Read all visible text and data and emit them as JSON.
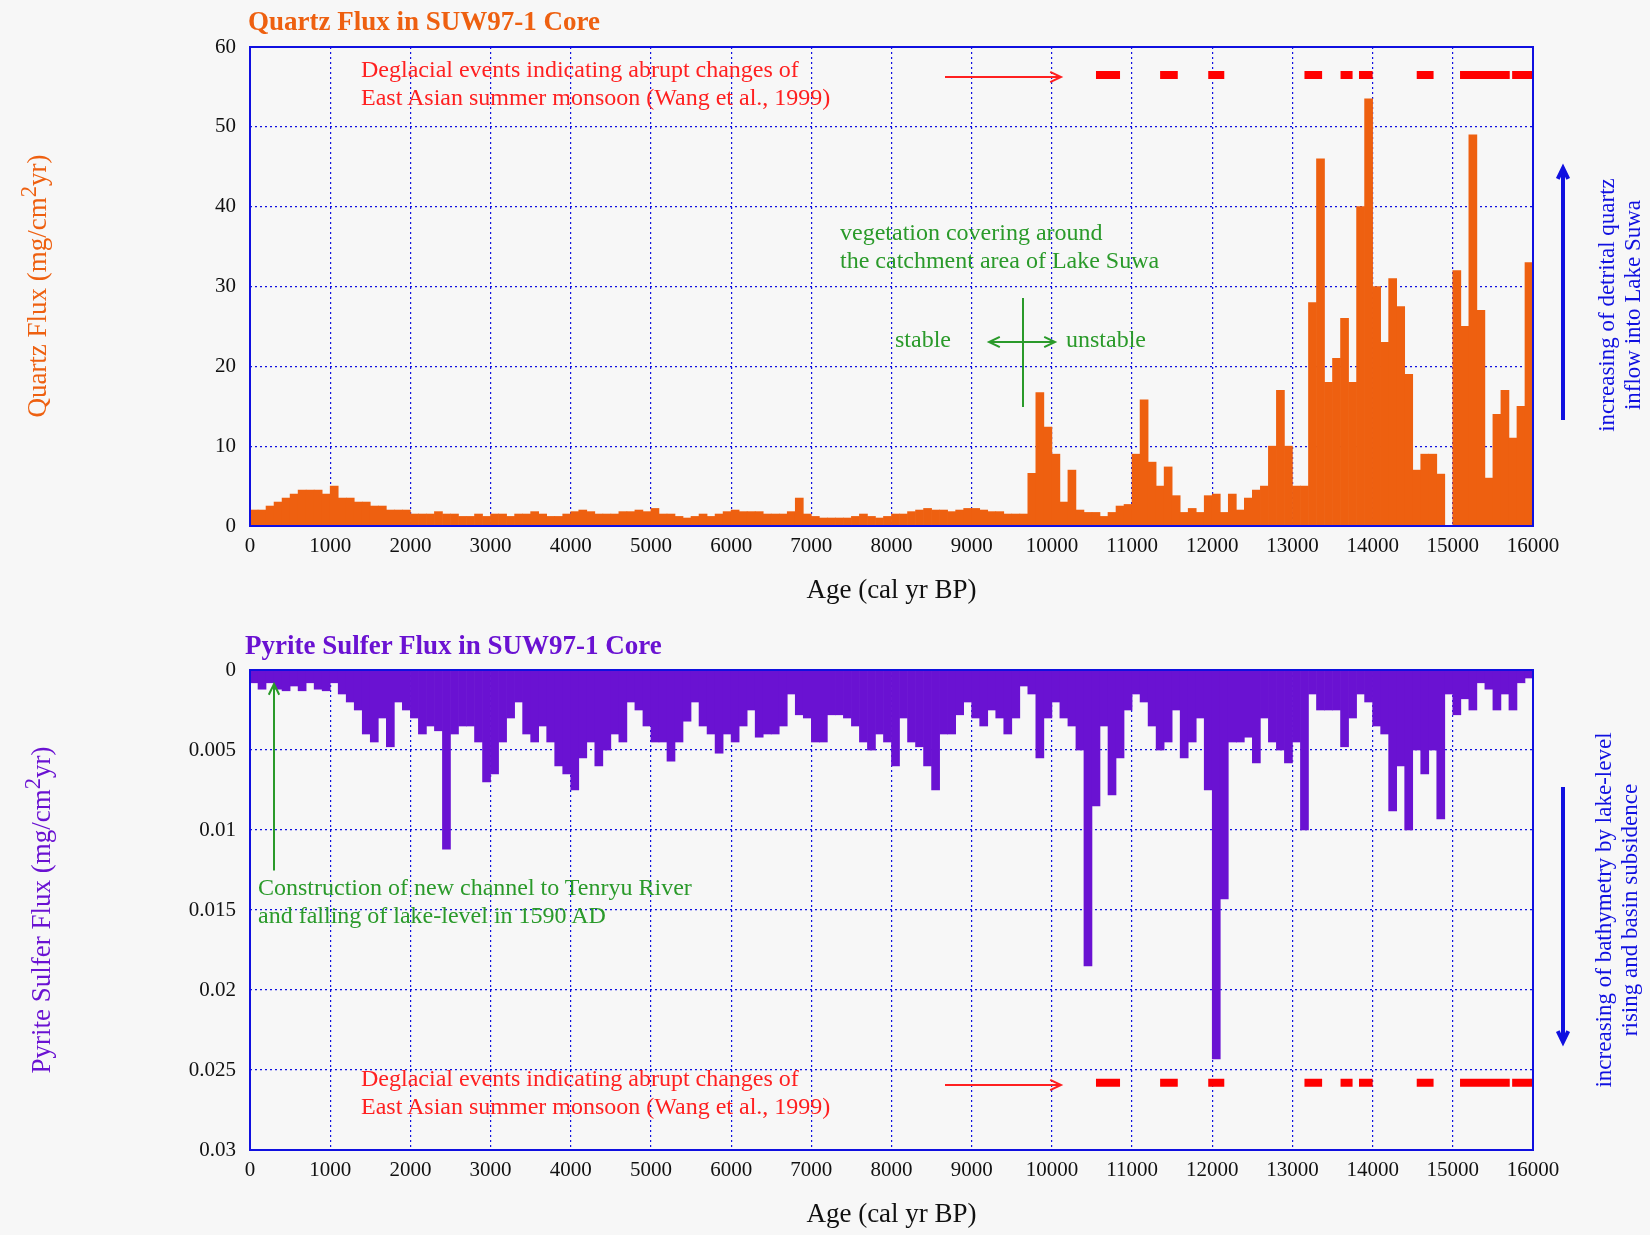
{
  "chart_data": [
    {
      "type": "histogram",
      "title": "Quartz Flux in SUW97-1 Core",
      "xlabel": "Age (cal yr BP)",
      "ylabel": "Quartz Flux (mg/cm$^{2}$yr)",
      "bins": [
        0,
        100,
        200,
        300,
        400,
        500,
        600,
        700,
        800,
        900,
        1000,
        1100,
        1200,
        1300,
        1400,
        1500,
        1600,
        1700,
        1800,
        1900,
        2000,
        2100,
        2200,
        2300,
        2400,
        2500,
        2600,
        2700,
        2800,
        2900,
        3000,
        3100,
        3200,
        3300,
        3400,
        3500,
        3600,
        3700,
        3800,
        3900,
        4000,
        4100,
        4200,
        4300,
        4400,
        4500,
        4600,
        4700,
        4800,
        4900,
        5000,
        5100,
        5200,
        5300,
        5400,
        5500,
        5600,
        5700,
        5800,
        5900,
        6000,
        6100,
        6200,
        6300,
        6400,
        6500,
        6600,
        6700,
        6800,
        6900,
        7000,
        7100,
        7200,
        7300,
        7400,
        7500,
        7600,
        7700,
        7800,
        7900,
        8000,
        8100,
        8200,
        8300,
        8400,
        8500,
        8600,
        8700,
        8800,
        8900,
        9000,
        9100,
        9200,
        9300,
        9400,
        9500,
        9600,
        9700,
        9800,
        9900,
        10000,
        10100,
        10200,
        10300,
        10400,
        10500,
        10600,
        10700,
        10800,
        10900,
        11000,
        11100,
        11200,
        11300,
        11400,
        11500,
        11600,
        11700,
        11800,
        11900,
        12000,
        12100,
        12200,
        12300,
        12400,
        12500,
        12600,
        12700,
        12800,
        12900,
        13000,
        13100,
        13200,
        13300,
        13400,
        13500,
        13600,
        13700,
        13800,
        13900,
        14000,
        14100,
        14200,
        14300,
        14400,
        14500,
        14600,
        14700,
        14800,
        14900,
        15000,
        15100,
        15200,
        15300,
        15400,
        15500,
        15600,
        15700,
        15800,
        15900,
        16000
      ],
      "series": [
        {
          "color": "#ee6010",
          "values": [
            2,
            2,
            2.5,
            3,
            3.5,
            4,
            4.5,
            4.5,
            4.5,
            4,
            5,
            3.5,
            3.5,
            3,
            3,
            2.5,
            2.5,
            2,
            2,
            2,
            1.5,
            1.5,
            1.5,
            1.8,
            1.5,
            1.5,
            1.2,
            1.2,
            1.5,
            1.2,
            1.5,
            1.5,
            1.2,
            1.5,
            1.5,
            1.8,
            1.5,
            1.2,
            1.2,
            1.5,
            1.8,
            2,
            1.8,
            1.5,
            1.5,
            1.5,
            1.8,
            1.8,
            2,
            1.8,
            2.2,
            1.5,
            1.5,
            1.2,
            1,
            1.2,
            1.5,
            1.2,
            1.5,
            1.8,
            2,
            1.8,
            1.8,
            1.8,
            1.5,
            1.5,
            1.5,
            1.8,
            3.5,
            1.5,
            1.2,
            1,
            1,
            1,
            1,
            1.2,
            1.5,
            1.2,
            1,
            1.2,
            1.5,
            1.5,
            1.8,
            2,
            2.2,
            2,
            2,
            1.8,
            2,
            2.2,
            2.2,
            2,
            1.8,
            1.8,
            1.5,
            1.5,
            1.5,
            6.6,
            16.7,
            12.4,
            9,
            3,
            7,
            2,
            1.7,
            1.7,
            1.2,
            1.7,
            2.5,
            2.7,
            9,
            15.8,
            8,
            5,
            7.4,
            3.8,
            1.7,
            2.2,
            1.7,
            3.8,
            4,
            1.7,
            4,
            2,
            3.5,
            4.5,
            5,
            10,
            17,
            10,
            5,
            5,
            28,
            46,
            18,
            21,
            26,
            18,
            40,
            53.5,
            30,
            23,
            31,
            27.5,
            19,
            7,
            9,
            9,
            6.5,
            0,
            32,
            25,
            49,
            27,
            6,
            14,
            17,
            11,
            15,
            33
          ]
        },
        {
          "type": "line",
          "color": "#ff0000",
          "x": [
            10550,
            10850,
            10900,
            11350,
            11570,
            11600,
            11950,
            12150,
            12200,
            13150,
            13370,
            13400,
            13600,
            13750,
            13790,
            13830,
            14000,
            14100,
            14550,
            14760,
            14800,
            15090,
            15710,
            15725,
            15740,
            15990
          ],
          "values": [
            56.5,
            56.5,
            null,
            56.5,
            56.5,
            null,
            56.5,
            56.5,
            null,
            56.5,
            56.5,
            null,
            56.5,
            56.5,
            null,
            56.5,
            56.5,
            null,
            56.5,
            56.5,
            null,
            56.5,
            56.5,
            null,
            56.5,
            56.5
          ]
        }
      ],
      "xlim": [
        0,
        16000
      ],
      "xticks": [
        0,
        1000,
        2000,
        3000,
        4000,
        5000,
        6000,
        7000,
        8000,
        9000,
        10000,
        11000,
        12000,
        13000,
        14000,
        15000,
        16000
      ],
      "ylim": [
        0,
        60
      ],
      "yticks": [
        0,
        10,
        20,
        30,
        40,
        50,
        60
      ],
      "grid": true,
      "annotations": [
        "Deglacial events indicating abrupt changes of\nEast Asian summer monsoon (Wang et al., 1999)",
        "vegetation covering around\nthe catchment area of Lake Suwa",
        "stable",
        "unstable",
        "increasing of detrital quartz\ninflow into Lake Suwa"
      ]
    },
    {
      "type": "histogram",
      "title": "Pyrite Sulfer Flux in SUW97-1 Core",
      "xlabel": "Age (cal yr BP)",
      "ylabel": "Pyrite Sulfer Flux (mg/cm$^{2}$yr)",
      "bins": [
        0,
        100,
        200,
        300,
        400,
        500,
        600,
        700,
        800,
        900,
        1000,
        1100,
        1200,
        1300,
        1400,
        1500,
        1600,
        1700,
        1800,
        1900,
        2000,
        2100,
        2200,
        2300,
        2400,
        2500,
        2600,
        2700,
        2800,
        2900,
        3000,
        3100,
        3200,
        3300,
        3400,
        3500,
        3600,
        3700,
        3800,
        3900,
        4000,
        4100,
        4200,
        4300,
        4400,
        4500,
        4600,
        4700,
        4800,
        4900,
        5000,
        5100,
        5200,
        5300,
        5400,
        5500,
        5600,
        5700,
        5800,
        5900,
        6000,
        6100,
        6200,
        6300,
        6400,
        6500,
        6600,
        6700,
        6800,
        6900,
        7000,
        7100,
        7200,
        7300,
        7400,
        7500,
        7600,
        7700,
        7800,
        7900,
        8000,
        8100,
        8200,
        8300,
        8400,
        8500,
        8600,
        8700,
        8800,
        8900,
        9000,
        9100,
        9200,
        9300,
        9400,
        9500,
        9600,
        9700,
        9800,
        9900,
        10000,
        10100,
        10200,
        10300,
        10400,
        10500,
        10600,
        10700,
        10800,
        10900,
        11000,
        11100,
        11200,
        11300,
        11400,
        11500,
        11600,
        11700,
        11800,
        11900,
        12000,
        12100,
        12200,
        12300,
        12400,
        12500,
        12600,
        12700,
        12800,
        12900,
        13000,
        13100,
        13200,
        13300,
        13400,
        13500,
        13600,
        13700,
        13800,
        13900,
        14000,
        14100,
        14200,
        14300,
        14400,
        14500,
        14600,
        14700,
        14800,
        14900,
        15000,
        15100,
        15200,
        15300,
        15400,
        15500,
        15600,
        15700,
        15800,
        15900,
        16000
      ],
      "series": [
        {
          "color": "#6a12d2",
          "values": [
            0.0008,
            0.0012,
            0.0008,
            0.0012,
            0.0013,
            0.001,
            0.0013,
            0.0008,
            0.0012,
            0.0013,
            0.0008,
            0.0015,
            0.002,
            0.0025,
            0.004,
            0.0045,
            0.003,
            0.0048,
            0.002,
            0.0025,
            0.003,
            0.004,
            0.0035,
            0.0038,
            0.0112,
            0.004,
            0.0035,
            0.0035,
            0.0045,
            0.007,
            0.0065,
            0.0045,
            0.003,
            0.002,
            0.004,
            0.0045,
            0.0035,
            0.0045,
            0.006,
            0.0065,
            0.0075,
            0.0055,
            0.0045,
            0.006,
            0.005,
            0.004,
            0.0045,
            0.002,
            0.0025,
            0.0035,
            0.0045,
            0.0045,
            0.0057,
            0.0045,
            0.0032,
            0.002,
            0.0035,
            0.004,
            0.0052,
            0.004,
            0.0045,
            0.0035,
            0.0025,
            0.0042,
            0.004,
            0.004,
            0.0035,
            0.0015,
            0.0028,
            0.003,
            0.0045,
            0.0045,
            0.0028,
            0.0028,
            0.003,
            0.0035,
            0.0045,
            0.005,
            0.004,
            0.0045,
            0.006,
            0.003,
            0.0045,
            0.0048,
            0.006,
            0.0075,
            0.004,
            0.004,
            0.0028,
            0.002,
            0.003,
            0.0035,
            0.0025,
            0.003,
            0.004,
            0.003,
            0.001,
            0.0015,
            0.0055,
            0.003,
            0.002,
            0.003,
            0.0035,
            0.005,
            0.0185,
            0.0085,
            0.0035,
            0.0078,
            0.0055,
            0.0025,
            0.0015,
            0.002,
            0.0035,
            0.005,
            0.0045,
            0.0025,
            0.0055,
            0.0045,
            0.003,
            0.0075,
            0.0243,
            0.0143,
            0.0045,
            0.0045,
            0.0042,
            0.0058,
            0.003,
            0.0045,
            0.005,
            0.0058,
            0.0045,
            0.01,
            0.0015,
            0.0025,
            0.0025,
            0.0025,
            0.0048,
            0.003,
            0.0015,
            0.002,
            0.0035,
            0.004,
            0.0088,
            0.006,
            0.01,
            0.005,
            0.0065,
            0.005,
            0.0093,
            0.0015,
            0.0028,
            0.0018,
            0.0025,
            0.0008,
            0.0012,
            0.0025,
            0.0015,
            0.0025,
            0.0008,
            0.0005
          ]
        },
        {
          "type": "line",
          "color": "#ff0000",
          "x": [
            10550,
            10850,
            10900,
            11350,
            11570,
            11600,
            11950,
            12150,
            12200,
            13150,
            13370,
            13400,
            13600,
            13750,
            13790,
            13830,
            14000,
            14100,
            14550,
            14760,
            14800,
            15090,
            15710,
            15725,
            15740,
            15990
          ],
          "values": [
            0.0258,
            0.0258,
            null,
            0.0258,
            0.0258,
            null,
            0.0258,
            0.0258,
            null,
            0.0258,
            0.0258,
            null,
            0.0258,
            0.0258,
            null,
            0.0258,
            0.0258,
            null,
            0.0258,
            0.0258,
            null,
            0.0258,
            0.0258,
            null,
            0.0258,
            0.0258
          ]
        }
      ],
      "xlim": [
        0,
        16000
      ],
      "xticks": [
        0,
        1000,
        2000,
        3000,
        4000,
        5000,
        6000,
        7000,
        8000,
        9000,
        10000,
        11000,
        12000,
        13000,
        14000,
        15000,
        16000
      ],
      "ylim": [
        0.03,
        0
      ],
      "yticks": [
        0,
        0.005,
        0.01,
        0.015,
        0.02,
        0.025,
        0.03
      ],
      "grid": true,
      "annotations": [
        {
          "text": "Construction of new channel to Tenryu River\nand falling of lake-level in 1590 AD",
          "x": 300,
          "y": 0.0009
        },
        "Deglacial events indicating abrupt changes of\nEast Asian summer monsoon (Wang et al., 1999)",
        "increasing of bathymetry by lake-level\nrising and basin subsidence"
      ]
    }
  ]
}
